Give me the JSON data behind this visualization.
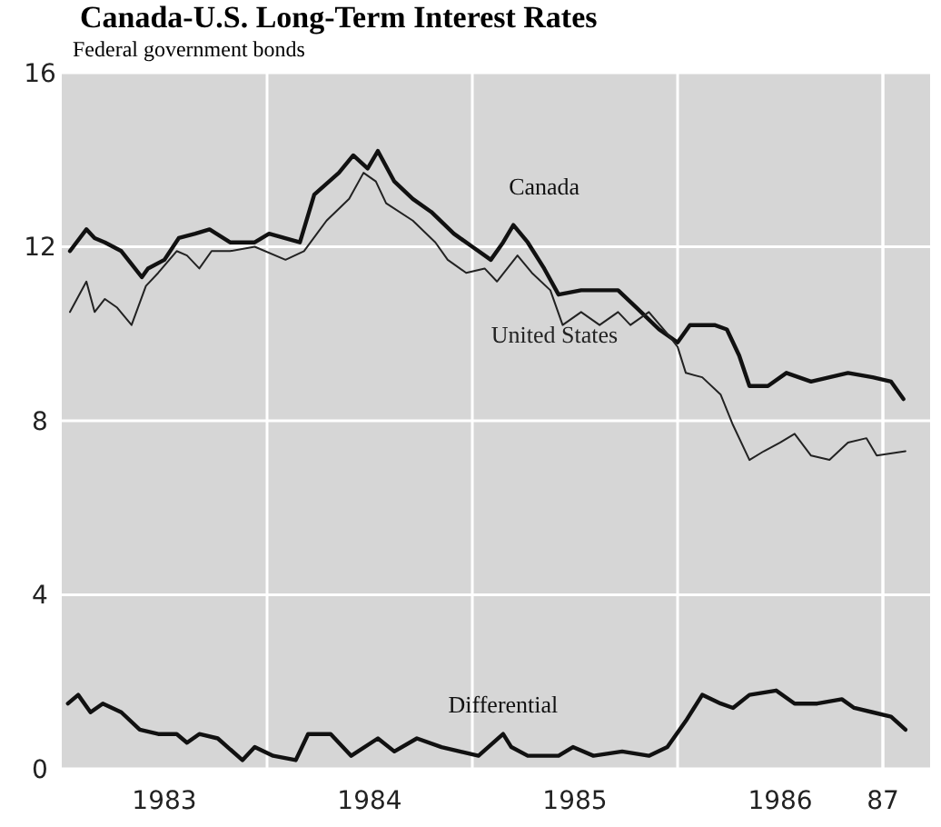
{
  "chart_data": {
    "type": "line",
    "title": "Canada-U.S. Long-Term Interest Rates",
    "subtitle": "Federal government bonds",
    "xlim": [
      1983,
      1987.23
    ],
    "xticks": [
      {
        "value": 1983.5,
        "label": "1983"
      },
      {
        "value": 1984.5,
        "label": "1984"
      },
      {
        "value": 1985.5,
        "label": "1985"
      },
      {
        "value": 1986.5,
        "label": "1986"
      },
      {
        "value": 1987,
        "label": "87"
      },
      {
        "value": 1984,
        "label": null
      },
      {
        "value": 1985,
        "label": null
      },
      {
        "value": 1986,
        "label": null
      },
      {
        "value": 1987,
        "label": null
      }
    ],
    "ylim": [
      0,
      16
    ],
    "yticks": [
      0,
      4,
      8,
      12,
      16
    ],
    "grid": true,
    "series": [
      {
        "name": "Canada",
        "color": "#111111",
        "x": [
          1983.04,
          1983.12,
          1983.16,
          1983.21,
          1983.29,
          1983.34,
          1983.39,
          1983.42,
          1983.5,
          1983.57,
          1983.65,
          1983.72,
          1983.82,
          1983.94,
          1984.01,
          1984.16,
          1984.23,
          1984.35,
          1984.42,
          1984.49,
          1984.54,
          1984.62,
          1984.71,
          1984.8,
          1984.91,
          1985.0,
          1985.09,
          1985.15,
          1985.2,
          1985.27,
          1985.35,
          1985.42,
          1985.53,
          1985.65,
          1985.71,
          1985.8,
          1985.91,
          1986.0,
          1986.06,
          1986.18,
          1986.24,
          1986.3,
          1986.35,
          1986.44,
          1986.53,
          1986.65,
          1986.74,
          1986.83,
          1986.95,
          1987.04,
          1987.1
        ],
        "values": [
          11.9,
          12.4,
          12.2,
          12.1,
          11.9,
          11.6,
          11.3,
          11.5,
          11.7,
          12.2,
          12.3,
          12.4,
          12.1,
          12.1,
          12.3,
          12.1,
          13.2,
          13.7,
          14.1,
          13.8,
          14.2,
          13.5,
          13.1,
          12.8,
          12.3,
          12.0,
          11.7,
          12.1,
          12.5,
          12.1,
          11.5,
          10.9,
          11.0,
          11.0,
          11.0,
          10.6,
          10.1,
          9.8,
          10.2,
          10.2,
          10.1,
          9.5,
          8.8,
          8.8,
          9.1,
          8.9,
          9.0,
          9.1,
          9.0,
          8.9,
          8.5
        ]
      },
      {
        "name": "United States",
        "color": "#222222",
        "x": [
          1983.04,
          1983.12,
          1983.16,
          1983.21,
          1983.27,
          1983.34,
          1983.41,
          1983.47,
          1983.56,
          1983.61,
          1983.67,
          1983.73,
          1983.82,
          1983.94,
          1984.09,
          1984.18,
          1984.29,
          1984.4,
          1984.47,
          1984.53,
          1984.58,
          1984.71,
          1984.82,
          1984.88,
          1984.97,
          1985.06,
          1985.12,
          1985.22,
          1985.29,
          1985.38,
          1985.44,
          1985.53,
          1985.62,
          1985.71,
          1985.77,
          1985.86,
          1985.95,
          1986.0,
          1986.04,
          1986.12,
          1986.21,
          1986.27,
          1986.35,
          1986.42,
          1986.5,
          1986.57,
          1986.65,
          1986.74,
          1986.83,
          1986.92,
          1986.97,
          1987.11
        ],
        "values": [
          10.5,
          11.2,
          10.5,
          10.8,
          10.6,
          10.2,
          11.1,
          11.4,
          11.9,
          11.8,
          11.5,
          11.9,
          11.9,
          12.0,
          11.7,
          11.9,
          12.6,
          13.1,
          13.7,
          13.5,
          13.0,
          12.6,
          12.1,
          11.7,
          11.4,
          11.5,
          11.2,
          11.8,
          11.4,
          11.0,
          10.2,
          10.5,
          10.2,
          10.5,
          10.2,
          10.5,
          10.0,
          9.7,
          9.1,
          9.0,
          8.6,
          7.9,
          7.1,
          7.3,
          7.5,
          7.7,
          7.2,
          7.1,
          7.5,
          7.6,
          7.2,
          7.3
        ]
      },
      {
        "name": "Differential",
        "color": "#111111",
        "x": [
          1983.03,
          1983.08,
          1983.14,
          1983.2,
          1983.29,
          1983.38,
          1983.47,
          1983.56,
          1983.61,
          1983.67,
          1983.76,
          1983.88,
          1983.94,
          1984.03,
          1984.14,
          1984.2,
          1984.31,
          1984.41,
          1984.54,
          1984.62,
          1984.73,
          1984.85,
          1985.03,
          1985.15,
          1985.19,
          1985.27,
          1985.42,
          1985.49,
          1985.59,
          1985.73,
          1985.86,
          1985.95,
          1986.04,
          1986.12,
          1986.21,
          1986.27,
          1986.35,
          1986.48,
          1986.57,
          1986.68,
          1986.8,
          1986.86,
          1986.95,
          1987.04,
          1987.11
        ],
        "values": [
          1.5,
          1.7,
          1.3,
          1.5,
          1.3,
          0.9,
          0.8,
          0.8,
          0.6,
          0.8,
          0.7,
          0.2,
          0.5,
          0.3,
          0.2,
          0.8,
          0.8,
          0.3,
          0.7,
          0.4,
          0.7,
          0.5,
          0.3,
          0.8,
          0.5,
          0.3,
          0.3,
          0.5,
          0.3,
          0.4,
          0.3,
          0.5,
          1.1,
          1.7,
          1.5,
          1.4,
          1.7,
          1.8,
          1.5,
          1.5,
          1.6,
          1.4,
          1.3,
          1.2,
          0.9
        ]
      }
    ]
  }
}
